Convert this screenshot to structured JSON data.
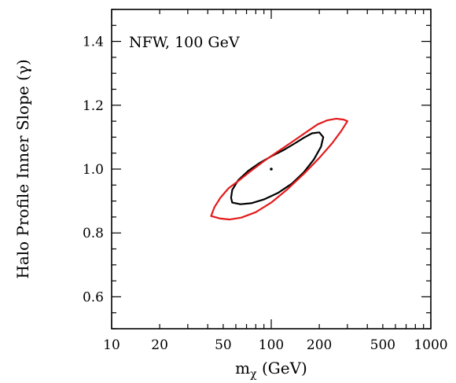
{
  "chart_data": {
    "type": "contour",
    "annotation": "NFW, 100 GeV",
    "xlabel": "m",
    "xlabel_subscript": "χ",
    "xlabel_suffix": " (GeV)",
    "ylabel": "Halo Profile Inner Slope (γ)",
    "xscale": "log",
    "xlim": [
      10,
      1000
    ],
    "ylim": [
      0.5,
      1.5
    ],
    "xticks": [
      10,
      20,
      50,
      100,
      200,
      500,
      1000
    ],
    "xtick_labels": [
      "10",
      "20",
      "50",
      "100",
      "200",
      "500",
      "1000"
    ],
    "yticks": [
      0.6,
      0.8,
      1.0,
      1.2,
      1.4
    ],
    "ytick_labels": [
      "0.6",
      "0.8",
      "1.0",
      "1.2",
      "1.4"
    ],
    "best_fit": {
      "x": 100,
      "y": 1.0
    },
    "series": [
      {
        "color": "#000000",
        "points": [
          [
            57,
            0.895
          ],
          [
            64,
            0.89
          ],
          [
            75,
            0.893
          ],
          [
            90,
            0.905
          ],
          [
            110,
            0.925
          ],
          [
            135,
            0.955
          ],
          [
            160,
            0.99
          ],
          [
            185,
            1.03
          ],
          [
            205,
            1.07
          ],
          [
            212,
            1.1
          ],
          [
            200,
            1.115
          ],
          [
            180,
            1.112
          ],
          [
            160,
            1.098
          ],
          [
            140,
            1.08
          ],
          [
            120,
            1.06
          ],
          [
            100,
            1.04
          ],
          [
            85,
            1.02
          ],
          [
            72,
            0.995
          ],
          [
            62,
            0.965
          ],
          [
            57,
            0.935
          ],
          [
            56,
            0.91
          ],
          [
            57,
            0.895
          ]
        ]
      },
      {
        "color": "#e41a1c",
        "points": [
          [
            42,
            0.853
          ],
          [
            48,
            0.845
          ],
          [
            55,
            0.842
          ],
          [
            65,
            0.848
          ],
          [
            80,
            0.865
          ],
          [
            100,
            0.895
          ],
          [
            125,
            0.935
          ],
          [
            160,
            0.985
          ],
          [
            200,
            1.035
          ],
          [
            240,
            1.08
          ],
          [
            275,
            1.12
          ],
          [
            300,
            1.15
          ],
          [
            285,
            1.155
          ],
          [
            255,
            1.158
          ],
          [
            225,
            1.153
          ],
          [
            195,
            1.14
          ],
          [
            165,
            1.115
          ],
          [
            135,
            1.085
          ],
          [
            110,
            1.055
          ],
          [
            90,
            1.025
          ],
          [
            75,
            0.995
          ],
          [
            63,
            0.965
          ],
          [
            54,
            0.94
          ],
          [
            48,
            0.91
          ],
          [
            44,
            0.88
          ],
          [
            42,
            0.853
          ]
        ]
      }
    ]
  }
}
